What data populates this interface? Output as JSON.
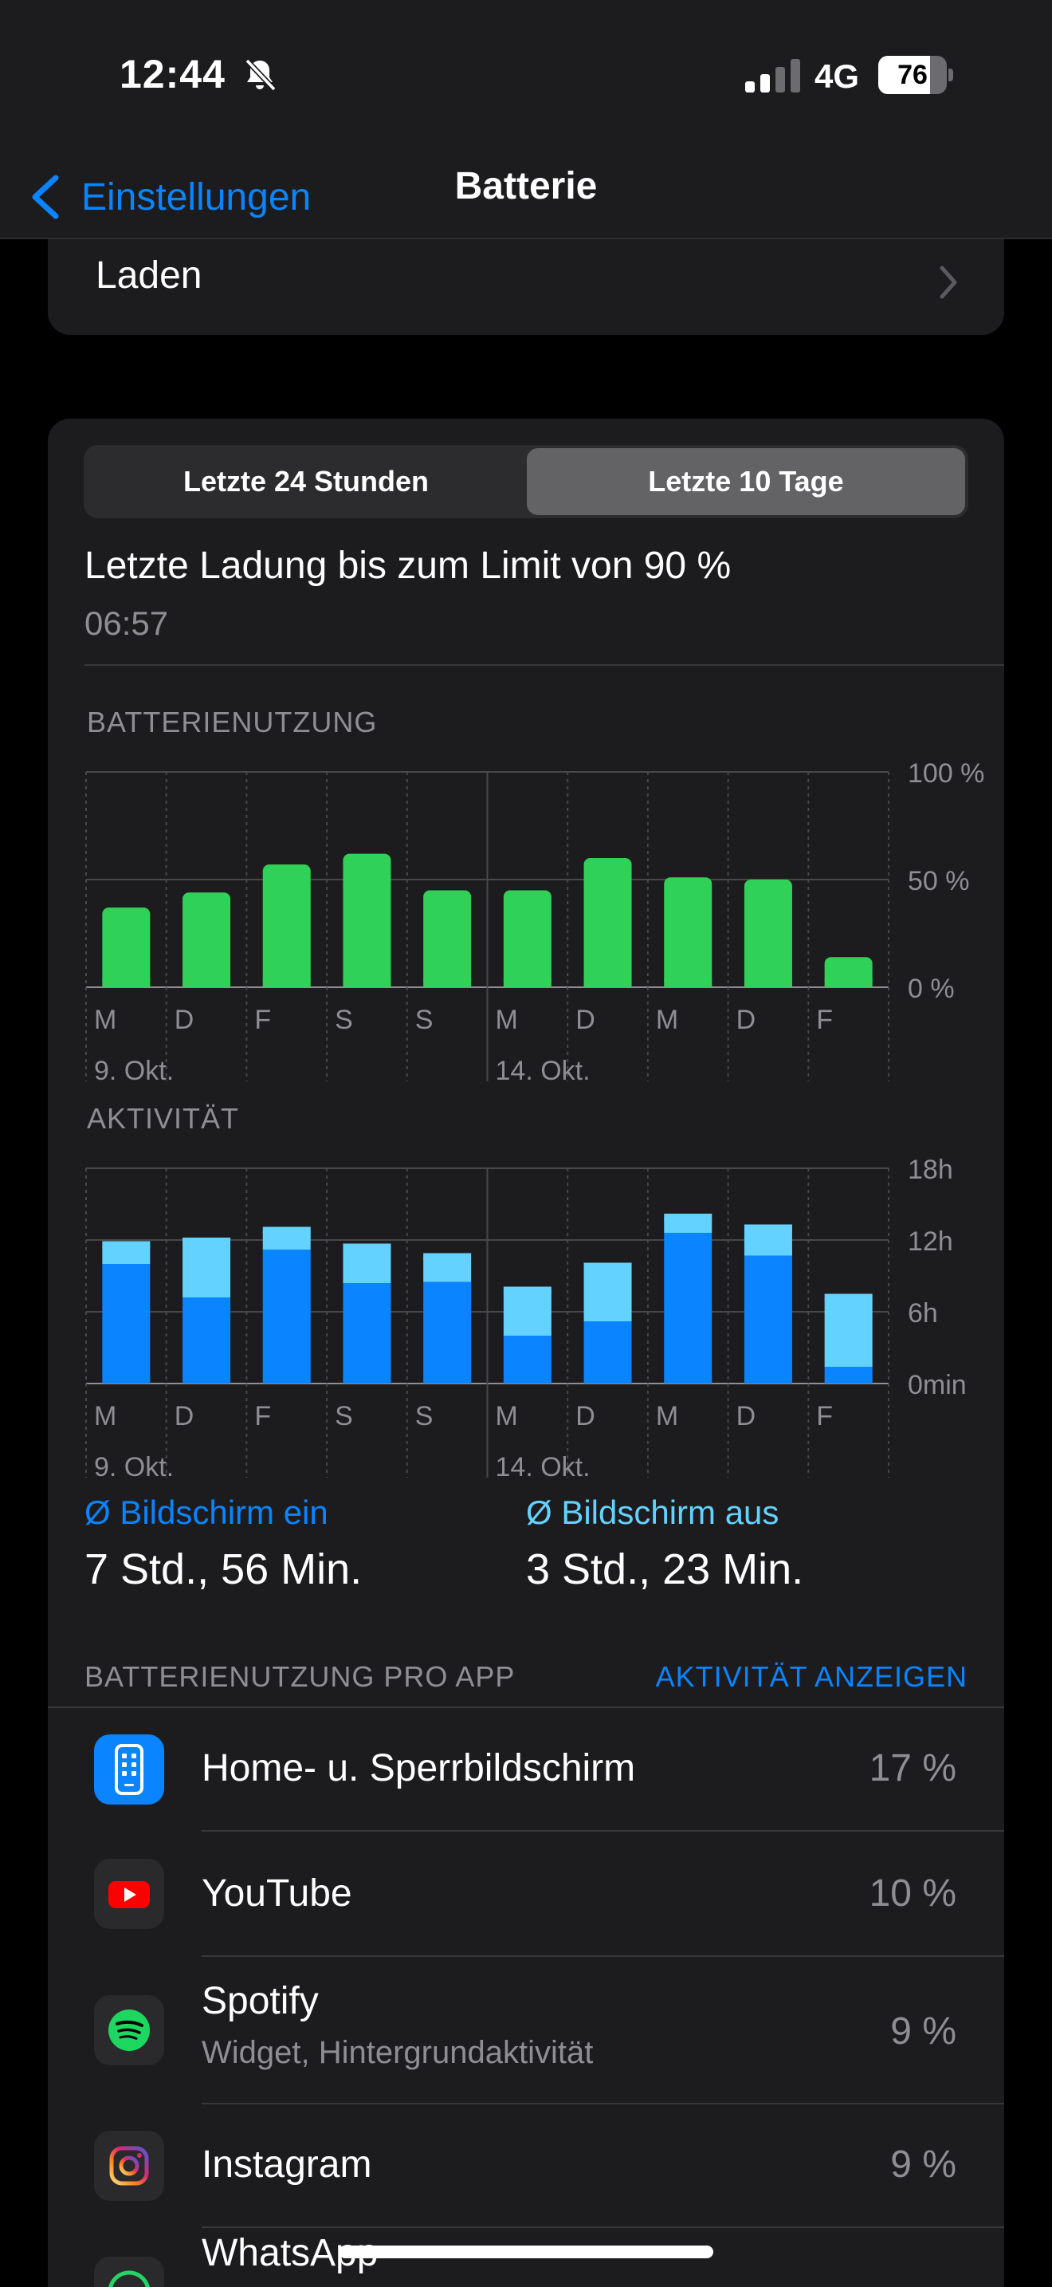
{
  "status": {
    "time": "12:44",
    "network": "4G",
    "battery_level": "76",
    "battery_fraction": 0.76
  },
  "nav": {
    "back_label": "Einstellungen",
    "title": "Batterie"
  },
  "charging_row": {
    "label": "Laden"
  },
  "segmented": {
    "options": [
      "Letzte 24 Stunden",
      "Letzte 10 Tage"
    ],
    "selected": "Letzte 10 Tage"
  },
  "last_charge": {
    "title": "Letzte Ladung bis zum Limit von 90 %",
    "time": "06:57"
  },
  "chart_data": [
    {
      "type": "bar",
      "title": "BATTERIENUTZUNG",
      "categories": [
        "M",
        "D",
        "F",
        "S",
        "S",
        "M",
        "D",
        "M",
        "D",
        "F"
      ],
      "week_labels": [
        "9. Okt.",
        "14. Okt."
      ],
      "values": [
        37,
        44,
        57,
        62,
        45,
        45,
        60,
        51,
        50,
        14
      ],
      "ylim": [
        0,
        100
      ],
      "y_ticks": [
        "100 %",
        "50 %",
        "0 %"
      ],
      "color": "#30d158"
    },
    {
      "type": "bar",
      "stacked": true,
      "title": "AKTIVITÄT",
      "categories": [
        "M",
        "D",
        "F",
        "S",
        "S",
        "M",
        "D",
        "M",
        "D",
        "F"
      ],
      "week_labels": [
        "9. Okt.",
        "14. Okt."
      ],
      "series": [
        {
          "name": "Bildschirm ein",
          "color": "#0a84ff",
          "values": [
            10.0,
            7.2,
            11.2,
            8.4,
            8.5,
            4.0,
            5.2,
            12.6,
            10.7,
            1.4
          ]
        },
        {
          "name": "Bildschirm aus",
          "color": "#64d2ff",
          "values": [
            1.9,
            5.0,
            1.9,
            3.3,
            2.4,
            4.1,
            4.9,
            1.6,
            2.6,
            6.1
          ]
        }
      ],
      "ylim": [
        0,
        18
      ],
      "y_ticks": [
        "18h",
        "12h",
        "6h",
        "0min"
      ]
    }
  ],
  "averages": {
    "screen_on": {
      "label": "Ø Bildschirm ein",
      "value": "7 Std., 56 Min."
    },
    "screen_off": {
      "label": "Ø Bildschirm aus",
      "value": "3 Std., 23 Min."
    }
  },
  "app_usage": {
    "header": "BATTERIENUTZUNG PRO APP",
    "link": "AKTIVITÄT ANZEIGEN",
    "apps": [
      {
        "name": "Home- u. Sperrbildschirm",
        "subtitle": "",
        "percent": "17 %",
        "icon": "home-screen-icon"
      },
      {
        "name": "YouTube",
        "subtitle": "",
        "percent": "10 %",
        "icon": "youtube-icon"
      },
      {
        "name": "Spotify",
        "subtitle": "Widget, Hintergrundaktivität",
        "percent": "9 %",
        "icon": "spotify-icon"
      },
      {
        "name": "Instagram",
        "subtitle": "",
        "percent": "9 %",
        "icon": "instagram-icon"
      },
      {
        "name": "WhatsApp",
        "subtitle": "",
        "percent": "",
        "icon": "whatsapp-icon"
      }
    ]
  },
  "colors": {
    "accent": "#0a84ff",
    "screen_off": "#64d2ff",
    "battery_green": "#30d158"
  }
}
